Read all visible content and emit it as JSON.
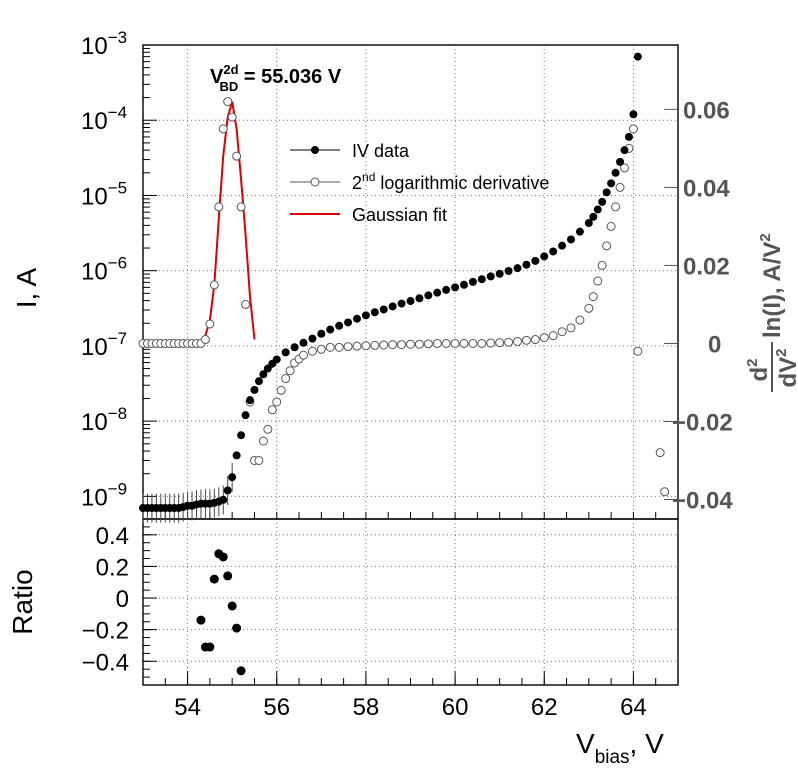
{
  "chart_data": [
    {
      "type": "scatter",
      "panel": "top",
      "yscale": "log",
      "xlim": [
        53,
        65
      ],
      "ylim": [
        5e-10,
        0.001
      ],
      "ylabel": "I, A",
      "ytick_labels": [
        {
          "mant": "10",
          "exp": "−9"
        },
        {
          "mant": "10",
          "exp": "−8"
        },
        {
          "mant": "10",
          "exp": "−7"
        },
        {
          "mant": "10",
          "exp": "−6"
        },
        {
          "mant": "10",
          "exp": "−5"
        },
        {
          "mant": "10",
          "exp": "−4"
        },
        {
          "mant": "10",
          "exp": "−3"
        }
      ],
      "y2lim": [
        -0.045,
        0.0765
      ],
      "y2ticks": [
        -0.04,
        -0.02,
        0,
        0.02,
        0.04,
        0.06
      ],
      "y2tick_labels": [
        "−0.04",
        "−0.02",
        "0",
        "0.02",
        "0.04",
        "0.06"
      ],
      "y2label": {
        "a_num": "d",
        "a_num_sup": "2",
        "a_den": "dV",
        "a_den_sup": "2",
        "rest": "ln(I), A/V",
        "rest_sup": "2"
      },
      "grid": true,
      "annotation": {
        "main": "V",
        "sup": "2d",
        "sub": "BD",
        "rest": " = 55.036 V"
      },
      "legend": {
        "position": "upper-center",
        "entries": [
          {
            "label": "IV data",
            "marker": "filled-circle"
          },
          {
            "label": "2",
            "label_sup": "nd",
            "label_rest": " logarithmic derivative",
            "marker": "open-circle"
          },
          {
            "label": "Gaussian fit",
            "marker": "red-line"
          }
        ]
      },
      "colors": {
        "iv": "#000000",
        "derivative": "#555555",
        "fit": "#dd0000",
        "right_axis": "#555555"
      },
      "series": [
        {
          "name": "IV data",
          "marker": "filled-circle",
          "x": [
            53.0,
            53.1,
            53.2,
            53.3,
            53.4,
            53.5,
            53.6,
            53.7,
            53.8,
            53.9,
            54.0,
            54.1,
            54.2,
            54.3,
            54.4,
            54.5,
            54.6,
            54.7,
            54.8,
            54.9,
            55.0,
            55.1,
            55.2,
            55.3,
            55.4,
            55.5,
            55.6,
            55.7,
            55.8,
            55.9,
            56.0,
            56.2,
            56.4,
            56.6,
            56.8,
            57.0,
            57.2,
            57.4,
            57.6,
            57.8,
            58.0,
            58.2,
            58.4,
            58.6,
            58.8,
            59.0,
            59.2,
            59.4,
            59.6,
            59.8,
            60.0,
            60.2,
            60.4,
            60.6,
            60.8,
            61.0,
            61.2,
            61.4,
            61.6,
            61.8,
            62.0,
            62.2,
            62.4,
            62.6,
            62.8,
            63.0,
            63.1,
            63.2,
            63.3,
            63.4,
            63.5,
            63.6,
            63.7,
            63.8,
            63.9,
            64.0,
            64.1
          ],
          "y": [
            7e-10,
            7e-10,
            7e-10,
            7e-10,
            7e-10,
            7e-10,
            7e-10,
            7e-10,
            7e-10,
            7.2e-10,
            7.5e-10,
            7.5e-10,
            7.8e-10,
            8e-10,
            8e-10,
            8e-10,
            8.2e-10,
            8.5e-10,
            9e-10,
            1.2e-09,
            1.8e-09,
            3.5e-09,
            6.5e-09,
            1.2e-08,
            1.9e-08,
            2.6e-08,
            3.4e-08,
            4.2e-08,
            5e-08,
            5.8e-08,
            6.6e-08,
            8.2e-08,
            9.6e-08,
            1.1e-07,
            1.25e-07,
            1.45e-07,
            1.65e-07,
            1.85e-07,
            2.05e-07,
            2.3e-07,
            2.55e-07,
            2.8e-07,
            3.05e-07,
            3.35e-07,
            3.65e-07,
            3.95e-07,
            4.3e-07,
            4.7e-07,
            5.1e-07,
            5.55e-07,
            6e-07,
            6.5e-07,
            7.1e-07,
            7.7e-07,
            8.4e-07,
            9.1e-07,
            9.9e-07,
            1.08e-06,
            1.2e-06,
            1.35e-06,
            1.55e-06,
            1.8e-06,
            2.15e-06,
            2.6e-06,
            3.3e-06,
            4.3e-06,
            5.2e-06,
            6.5e-06,
            8.2e-06,
            1.1e-05,
            1.45e-05,
            2e-05,
            2.8e-05,
            4e-05,
            6e-05,
            0.00012,
            0.0007
          ]
        },
        {
          "name": "2nd logarithmic derivative",
          "marker": "open-circle",
          "axis": "right",
          "x": [
            53.0,
            53.1,
            53.2,
            53.3,
            53.4,
            53.5,
            53.6,
            53.7,
            53.8,
            53.9,
            54.0,
            54.1,
            54.2,
            54.3,
            54.4,
            54.5,
            54.6,
            54.7,
            54.8,
            54.9,
            55.0,
            55.1,
            55.2,
            55.3,
            55.4,
            55.5,
            55.6,
            55.7,
            55.8,
            55.9,
            56.0,
            56.1,
            56.2,
            56.3,
            56.4,
            56.5,
            56.6,
            56.8,
            57.0,
            57.2,
            57.4,
            57.6,
            57.8,
            58.0,
            58.2,
            58.4,
            58.6,
            58.8,
            59.0,
            59.2,
            59.4,
            59.6,
            59.8,
            60.0,
            60.2,
            60.4,
            60.6,
            60.8,
            61.0,
            61.2,
            61.4,
            61.6,
            61.8,
            62.0,
            62.2,
            62.4,
            62.6,
            62.8,
            63.0,
            63.1,
            63.2,
            63.3,
            63.4,
            63.5,
            63.6,
            63.7,
            63.8,
            63.9,
            64.0,
            64.1,
            64.6,
            64.7
          ],
          "y": [
            0,
            0,
            0,
            0,
            0,
            0,
            0,
            0,
            0,
            0,
            0,
            0,
            0,
            0,
            0.001,
            0.005,
            0.015,
            0.035,
            0.055,
            0.062,
            0.058,
            0.048,
            0.035,
            0.01,
            -0.015,
            -0.03,
            -0.03,
            -0.025,
            -0.022,
            -0.017,
            -0.015,
            -0.012,
            -0.009,
            -0.007,
            -0.005,
            -0.004,
            -0.003,
            -0.002,
            -0.0015,
            -0.001,
            -0.001,
            -0.0008,
            -0.0007,
            -0.0006,
            -0.0005,
            -0.0004,
            -0.0003,
            -0.0003,
            -0.0002,
            -0.0002,
            -0.0001,
            0,
            0,
            0,
            0,
            0,
            0,
            0.0001,
            0.0002,
            0.0003,
            0.0005,
            0.0008,
            0.001,
            0.0015,
            0.002,
            0.003,
            0.004,
            0.006,
            0.009,
            0.012,
            0.016,
            0.02,
            0.025,
            0.03,
            0.035,
            0.04,
            0.045,
            0.05,
            0.055,
            -0.002,
            -0.028,
            -0.038
          ]
        },
        {
          "name": "Gaussian fit",
          "line_color": "#dd0000",
          "axis": "right",
          "x": [
            54.3,
            54.4,
            54.5,
            54.6,
            54.7,
            54.8,
            54.9,
            55.0,
            55.1,
            55.2,
            55.3,
            55.4,
            55.5
          ],
          "y": [
            0.0,
            0.002,
            0.006,
            0.015,
            0.032,
            0.048,
            0.058,
            0.062,
            0.055,
            0.042,
            0.028,
            0.012,
            0.001
          ]
        }
      ]
    },
    {
      "type": "scatter",
      "panel": "bottom",
      "xlim": [
        53,
        65
      ],
      "ylim": [
        -0.55,
        0.5
      ],
      "xticks": [
        54,
        56,
        58,
        60,
        62,
        64
      ],
      "yticks": [
        -0.4,
        -0.2,
        0,
        0.2,
        0.4
      ],
      "ytick_labels": [
        "−0.4",
        "−0.2",
        "0",
        "0.2",
        "0.4"
      ],
      "ylabel": "Ratio",
      "xlabel": {
        "main": "V",
        "sub": "bias",
        "rest": ", V"
      },
      "grid": true,
      "series": [
        {
          "name": "Ratio",
          "marker": "filled-circle",
          "x": [
            54.3,
            54.4,
            54.5,
            54.6,
            54.7,
            54.8,
            54.9,
            55.0,
            55.1,
            55.2
          ],
          "y": [
            -0.14,
            -0.31,
            -0.31,
            0.12,
            0.28,
            0.26,
            0.14,
            -0.05,
            -0.19,
            -0.46
          ]
        }
      ]
    }
  ]
}
